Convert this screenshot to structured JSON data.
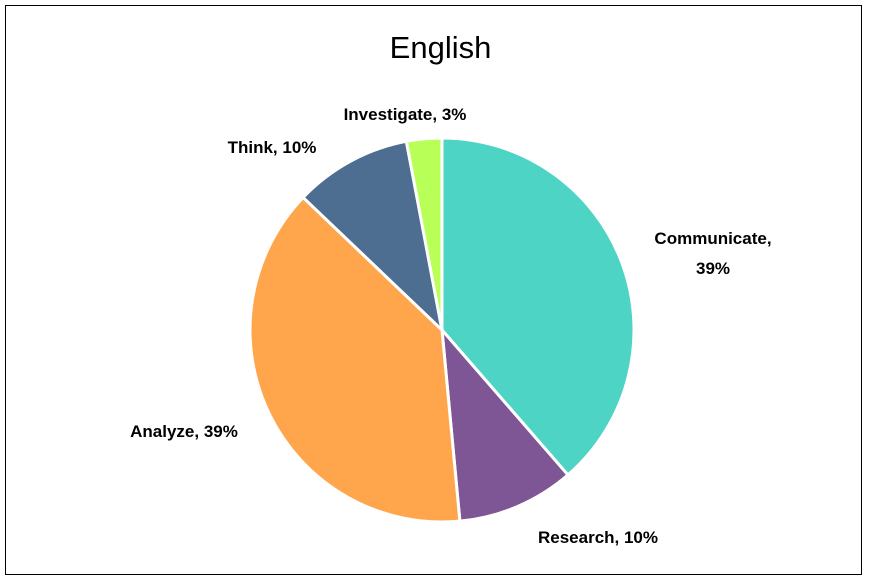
{
  "chart_data": {
    "type": "pie",
    "title": "English",
    "start_angle_deg": 0,
    "direction": "clockwise",
    "slices": [
      {
        "label": "Communicate",
        "value": 39,
        "display": [
          "Communicate,",
          "39%"
        ],
        "color": "#4DD4C4"
      },
      {
        "label": "Research",
        "value": 10,
        "display": [
          "Research, 10%"
        ],
        "color": "#7E5595"
      },
      {
        "label": "Analyze",
        "value": 39,
        "display": [
          "Analyze, 39%"
        ],
        "color": "#FFA64D"
      },
      {
        "label": "Think",
        "value": 10,
        "display": [
          "Think, 10%"
        ],
        "color": "#4D6E91"
      },
      {
        "label": "Investigate",
        "value": 3,
        "display": [
          "Investigate, 3%"
        ],
        "color": "#B8FF57"
      }
    ],
    "slice_border_color": "#FFFFFF",
    "legend": "none"
  }
}
